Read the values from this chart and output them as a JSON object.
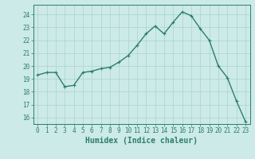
{
  "x": [
    0,
    1,
    2,
    3,
    4,
    5,
    6,
    7,
    8,
    9,
    10,
    11,
    12,
    13,
    14,
    15,
    16,
    17,
    18,
    19,
    20,
    21,
    22,
    23
  ],
  "y": [
    19.3,
    19.5,
    19.5,
    18.4,
    18.5,
    19.5,
    19.6,
    19.8,
    19.9,
    20.3,
    20.8,
    21.6,
    22.5,
    23.1,
    22.5,
    23.4,
    24.2,
    23.9,
    22.9,
    22.0,
    20.0,
    19.1,
    17.3,
    15.7
  ],
  "line_color": "#2d7d6e",
  "marker": "+",
  "marker_size": 3.5,
  "linewidth": 1.0,
  "bg_color": "#cceae7",
  "grid_color": "#aad4d0",
  "xlabel": "Humidex (Indice chaleur)",
  "xlim": [
    -0.5,
    23.5
  ],
  "ylim": [
    15.5,
    24.75
  ],
  "yticks": [
    16,
    17,
    18,
    19,
    20,
    21,
    22,
    23,
    24
  ],
  "xticks": [
    0,
    1,
    2,
    3,
    4,
    5,
    6,
    7,
    8,
    9,
    10,
    11,
    12,
    13,
    14,
    15,
    16,
    17,
    18,
    19,
    20,
    21,
    22,
    23
  ],
  "tick_fontsize": 5.5,
  "xlabel_fontsize": 7.0
}
